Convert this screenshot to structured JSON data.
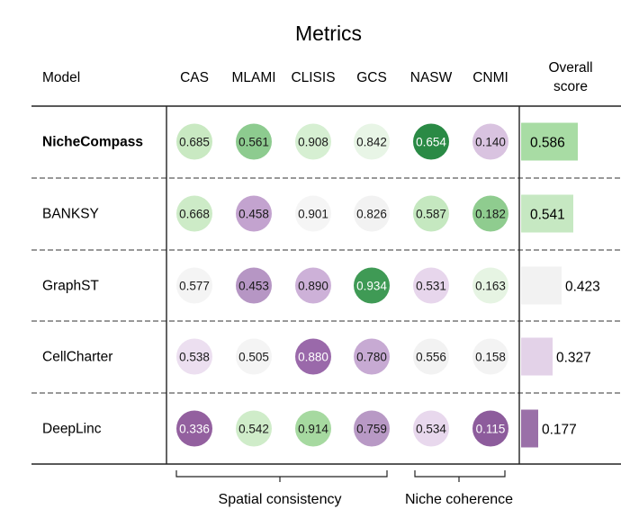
{
  "chart_data": {
    "type": "table",
    "title": "Metrics",
    "model_header": "Model",
    "overall_header": [
      "Overall",
      "score"
    ],
    "metrics": [
      "CAS",
      "MLAMI",
      "CLISIS",
      "GCS",
      "NASW",
      "CNMI"
    ],
    "groups": [
      {
        "label": "Spatial consistency",
        "metrics": [
          "CAS",
          "MLAMI",
          "CLISIS",
          "GCS"
        ]
      },
      {
        "label": "Niche coherence",
        "metrics": [
          "NASW",
          "CNMI"
        ]
      }
    ],
    "rows": [
      {
        "model": "NicheCompass",
        "bold": true,
        "values": [
          "0.685",
          "0.561",
          "0.908",
          "0.842",
          "0.654",
          "0.140"
        ],
        "colors": [
          "#c9e9c2",
          "#8dcb8f",
          "#d6efd2",
          "#e8f5e6",
          "#2a8a45",
          "#d9c3e0"
        ],
        "overall": "0.586",
        "overall_value": 0.586,
        "overall_color": "#a8dca4",
        "overall_inside": true
      },
      {
        "model": "BANKSY",
        "bold": false,
        "values": [
          "0.668",
          "0.458",
          "0.901",
          "0.826",
          "0.587",
          "0.182"
        ],
        "colors": [
          "#cdebc7",
          "#c3a3cf",
          "#f5f5f5",
          "#f2f2f2",
          "#c5e8c0",
          "#8fcc8f"
        ],
        "overall": "0.541",
        "overall_value": 0.541,
        "overall_color": "#c6e8c2",
        "overall_inside": true
      },
      {
        "model": "GraphST",
        "bold": false,
        "values": [
          "0.577",
          "0.453",
          "0.890",
          "0.934",
          "0.531",
          "0.163"
        ],
        "colors": [
          "#f4f4f4",
          "#b696c4",
          "#cdb1d8",
          "#3f9a55",
          "#e7d6ec",
          "#e6f4e3"
        ],
        "overall": "0.423",
        "overall_value": 0.423,
        "overall_color": "#f2f2f2",
        "overall_inside": false
      },
      {
        "model": "CellCharter",
        "bold": false,
        "values": [
          "0.538",
          "0.505",
          "0.880",
          "0.780",
          "0.556",
          "0.158"
        ],
        "colors": [
          "#ecdff0",
          "#f4f4f4",
          "#9a69aa",
          "#c7aad3",
          "#f2f2f2",
          "#f3f3f3"
        ],
        "overall": "0.327",
        "overall_value": 0.327,
        "overall_color": "#e3d2e8",
        "overall_inside": false
      },
      {
        "model": "DeepLinc",
        "bold": false,
        "values": [
          "0.336",
          "0.542",
          "0.914",
          "0.759",
          "0.534",
          "0.115"
        ],
        "colors": [
          "#93609f",
          "#cfecc9",
          "#a6d9a0",
          "#b899c5",
          "#e8d8ed",
          "#8d5c9c"
        ],
        "overall": "0.177",
        "overall_value": 0.177,
        "overall_color": "#9a70a8",
        "overall_inside": false
      }
    ],
    "light_text_cells": [
      [
        0,
        4
      ],
      [
        2,
        3
      ],
      [
        3,
        2
      ],
      [
        4,
        0
      ],
      [
        4,
        5
      ]
    ]
  }
}
